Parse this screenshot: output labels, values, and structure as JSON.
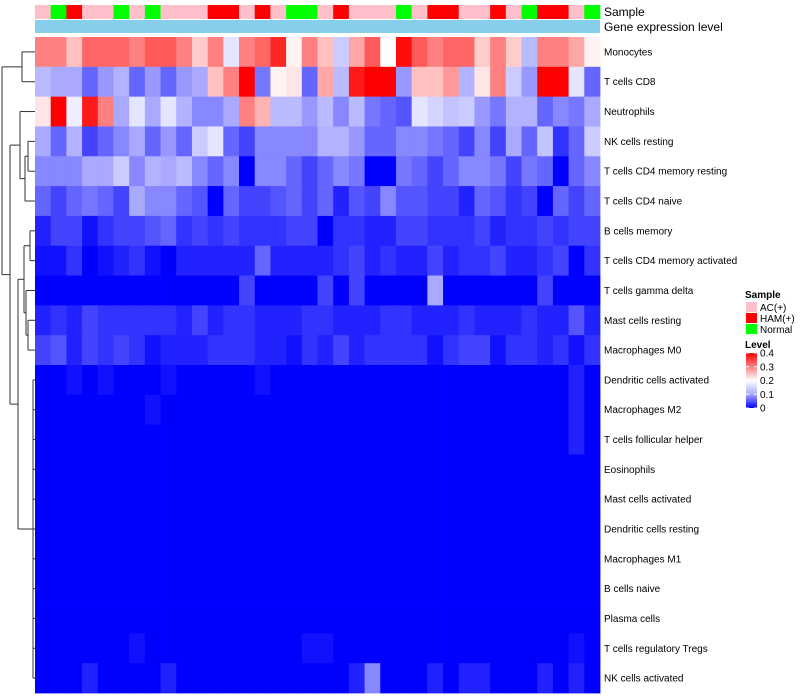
{
  "chart_data": {
    "type": "heatmap",
    "title": "",
    "annotation_rows": [
      "Sample",
      "Gene expression level"
    ],
    "gene_expression_color": "#87CEEB",
    "sample_groups": [
      "AC(+)",
      "HAM(+)",
      "Normal"
    ],
    "sample_colors": {
      "AC(+)": "#FFC0CB",
      "HAM(+)": "#FF0000",
      "Normal": "#00FF00"
    },
    "columns_sample": [
      "AC(+)",
      "Normal",
      "HAM(+)",
      "AC(+)",
      "AC(+)",
      "Normal",
      "AC(+)",
      "Normal",
      "AC(+)",
      "AC(+)",
      "AC(+)",
      "HAM(+)",
      "HAM(+)",
      "AC(+)",
      "HAM(+)",
      "AC(+)",
      "Normal",
      "Normal",
      "AC(+)",
      "HAM(+)",
      "AC(+)",
      "AC(+)",
      "AC(+)",
      "Normal",
      "AC(+)",
      "HAM(+)",
      "HAM(+)",
      "AC(+)",
      "AC(+)",
      "HAM(+)",
      "AC(+)",
      "Normal",
      "HAM(+)",
      "HAM(+)",
      "AC(+)",
      "Normal"
    ],
    "rows": [
      "Monocytes",
      "T cells CD8",
      "Neutrophils",
      "NK cells resting",
      "T cells CD4 memory resting",
      "T cells CD4 naive",
      "B cells memory",
      "T cells CD4 memory activated",
      "T cells gamma delta",
      "Mast cells resting",
      "Macrophages M0",
      "Dendritic cells activated",
      "Macrophages M2",
      "T cells follicular helper",
      "Eosinophils",
      "Mast cells activated",
      "Dendritic cells resting",
      "Macrophages M1",
      "B cells naive",
      "Plasma cells",
      "T cells regulatory  Tregs",
      "NK cells activated"
    ],
    "values": [
      [
        0.3,
        0.3,
        0.25,
        0.32,
        0.32,
        0.32,
        0.3,
        0.33,
        0.33,
        0.3,
        0.24,
        0.3,
        0.17,
        0.3,
        0.32,
        0.37,
        0.21,
        0.3,
        0.25,
        0.14,
        0.27,
        0.33,
        0.2,
        0.39,
        0.33,
        0.3,
        0.32,
        0.32,
        0.24,
        0.3,
        0.24,
        0.12,
        0.3,
        0.3,
        0.27,
        0.21
      ],
      [
        0.12,
        0.1,
        0.1,
        0.06,
        0.09,
        0.11,
        0.06,
        0.09,
        0.06,
        0.09,
        0.1,
        0.25,
        0.3,
        0.4,
        0.07,
        0.21,
        0.22,
        0.06,
        0.27,
        0.12,
        0.38,
        0.4,
        0.4,
        0.09,
        0.25,
        0.25,
        0.28,
        0.11,
        0.22,
        0.3,
        0.14,
        0.09,
        0.4,
        0.4,
        0.17,
        0.06
      ],
      [
        0.22,
        0.4,
        0.18,
        0.38,
        0.3,
        0.1,
        0.17,
        0.1,
        0.17,
        0.11,
        0.08,
        0.08,
        0.1,
        0.3,
        0.26,
        0.12,
        0.12,
        0.09,
        0.12,
        0.08,
        0.12,
        0.07,
        0.06,
        0.05,
        0.17,
        0.15,
        0.13,
        0.14,
        0.09,
        0.07,
        0.11,
        0.11,
        0.06,
        0.08,
        0.07,
        0.1
      ],
      [
        0.1,
        0.06,
        0.11,
        0.04,
        0.06,
        0.08,
        0.1,
        0.06,
        0.09,
        0.06,
        0.14,
        0.17,
        0.06,
        0.04,
        0.08,
        0.08,
        0.08,
        0.08,
        0.11,
        0.11,
        0.09,
        0.06,
        0.06,
        0.08,
        0.08,
        0.07,
        0.06,
        0.04,
        0.08,
        0.04,
        0.1,
        0.06,
        0.13,
        0.03,
        0.06,
        0.14
      ],
      [
        0.08,
        0.08,
        0.08,
        0.1,
        0.1,
        0.14,
        0.08,
        0.11,
        0.1,
        0.12,
        0.08,
        0.06,
        0.08,
        0.0,
        0.08,
        0.08,
        0.06,
        0.04,
        0.06,
        0.08,
        0.07,
        0.0,
        0.0,
        0.07,
        0.06,
        0.04,
        0.06,
        0.08,
        0.08,
        0.07,
        0.04,
        0.07,
        0.06,
        0.0,
        0.06,
        0.08
      ],
      [
        0.06,
        0.04,
        0.06,
        0.07,
        0.06,
        0.04,
        0.1,
        0.08,
        0.08,
        0.06,
        0.05,
        0.0,
        0.06,
        0.04,
        0.04,
        0.05,
        0.06,
        0.04,
        0.06,
        0.02,
        0.05,
        0.04,
        0.08,
        0.05,
        0.05,
        0.04,
        0.04,
        0.02,
        0.06,
        0.05,
        0.03,
        0.04,
        0.0,
        0.06,
        0.04,
        0.06
      ],
      [
        0.02,
        0.04,
        0.04,
        0.01,
        0.03,
        0.04,
        0.04,
        0.05,
        0.06,
        0.03,
        0.04,
        0.03,
        0.04,
        0.03,
        0.03,
        0.03,
        0.04,
        0.04,
        0.0,
        0.03,
        0.03,
        0.02,
        0.02,
        0.04,
        0.04,
        0.03,
        0.03,
        0.03,
        0.04,
        0.02,
        0.03,
        0.03,
        0.04,
        0.03,
        0.04,
        0.04
      ],
      [
        0.01,
        0.01,
        0.03,
        0.0,
        0.01,
        0.02,
        0.03,
        0.01,
        0.0,
        0.02,
        0.02,
        0.02,
        0.02,
        0.02,
        0.06,
        0.02,
        0.02,
        0.02,
        0.02,
        0.03,
        0.04,
        0.02,
        0.03,
        0.02,
        0.02,
        0.04,
        0.02,
        0.03,
        0.03,
        0.04,
        0.02,
        0.02,
        0.03,
        0.04,
        0.0,
        0.03
      ],
      [
        0.0,
        0.0,
        0.0,
        0.0,
        0.0,
        0.0,
        0.0,
        0.0,
        0.0,
        0.0,
        0.0,
        0.0,
        0.0,
        0.04,
        0.0,
        0.0,
        0.0,
        0.0,
        0.04,
        0.0,
        0.04,
        0.0,
        0.0,
        0.0,
        0.0,
        0.1,
        0.0,
        0.0,
        0.0,
        0.0,
        0.0,
        0.0,
        0.04,
        0.0,
        0.0,
        0.0
      ],
      [
        0.02,
        0.03,
        0.02,
        0.04,
        0.03,
        0.03,
        0.03,
        0.03,
        0.03,
        0.02,
        0.04,
        0.02,
        0.03,
        0.03,
        0.02,
        0.02,
        0.02,
        0.03,
        0.03,
        0.02,
        0.02,
        0.02,
        0.03,
        0.03,
        0.02,
        0.02,
        0.02,
        0.03,
        0.02,
        0.02,
        0.02,
        0.03,
        0.02,
        0.02,
        0.05,
        0.02
      ],
      [
        0.04,
        0.05,
        0.02,
        0.04,
        0.03,
        0.04,
        0.03,
        0.01,
        0.02,
        0.02,
        0.02,
        0.03,
        0.03,
        0.03,
        0.02,
        0.02,
        0.01,
        0.03,
        0.02,
        0.04,
        0.02,
        0.03,
        0.03,
        0.03,
        0.03,
        0.01,
        0.03,
        0.04,
        0.04,
        0.01,
        0.03,
        0.03,
        0.02,
        0.03,
        0.01,
        0.03
      ],
      [
        0.0,
        0.0,
        0.01,
        0.0,
        0.01,
        0.0,
        0.0,
        0.0,
        0.01,
        0.0,
        0.0,
        0.0,
        0.0,
        0.0,
        0.01,
        0.0,
        0.0,
        0.0,
        0.0,
        0.0,
        0.0,
        0.0,
        0.0,
        0.0,
        0.0,
        0.0,
        0.0,
        0.0,
        0.0,
        0.0,
        0.0,
        0.0,
        0.0,
        0.0,
        0.02,
        0.0
      ],
      [
        0.0,
        0.0,
        0.0,
        0.0,
        0.0,
        0.0,
        0.0,
        0.01,
        0.0,
        0.0,
        0.0,
        0.0,
        0.0,
        0.0,
        0.0,
        0.0,
        0.0,
        0.0,
        0.0,
        0.0,
        0.0,
        0.0,
        0.0,
        0.0,
        0.0,
        0.0,
        0.0,
        0.0,
        0.0,
        0.0,
        0.0,
        0.0,
        0.0,
        0.0,
        0.02,
        0.0
      ],
      [
        0.0,
        0.0,
        0.0,
        0.0,
        0.0,
        0.0,
        0.0,
        0.0,
        0.0,
        0.0,
        0.0,
        0.0,
        0.0,
        0.0,
        0.0,
        0.0,
        0.0,
        0.0,
        0.0,
        0.0,
        0.0,
        0.0,
        0.0,
        0.0,
        0.0,
        0.0,
        0.0,
        0.0,
        0.0,
        0.0,
        0.0,
        0.0,
        0.0,
        0.0,
        0.02,
        0.0
      ],
      [
        0.0,
        0.0,
        0.0,
        0.0,
        0.0,
        0.0,
        0.0,
        0.0,
        0.0,
        0.0,
        0.0,
        0.0,
        0.0,
        0.0,
        0.0,
        0.0,
        0.0,
        0.0,
        0.0,
        0.0,
        0.0,
        0.0,
        0.0,
        0.0,
        0.0,
        0.0,
        0.0,
        0.0,
        0.0,
        0.0,
        0.0,
        0.0,
        0.0,
        0.0,
        0.0,
        0.0
      ],
      [
        0.0,
        0.0,
        0.0,
        0.0,
        0.0,
        0.0,
        0.0,
        0.0,
        0.0,
        0.0,
        0.0,
        0.0,
        0.0,
        0.0,
        0.0,
        0.0,
        0.0,
        0.0,
        0.0,
        0.0,
        0.0,
        0.0,
        0.0,
        0.0,
        0.0,
        0.0,
        0.0,
        0.0,
        0.0,
        0.0,
        0.0,
        0.0,
        0.0,
        0.0,
        0.0,
        0.0
      ],
      [
        0.0,
        0.0,
        0.0,
        0.0,
        0.0,
        0.0,
        0.0,
        0.0,
        0.0,
        0.0,
        0.0,
        0.0,
        0.0,
        0.0,
        0.0,
        0.0,
        0.0,
        0.0,
        0.0,
        0.0,
        0.0,
        0.0,
        0.0,
        0.0,
        0.0,
        0.0,
        0.0,
        0.0,
        0.0,
        0.0,
        0.0,
        0.0,
        0.0,
        0.0,
        0.0,
        0.0
      ],
      [
        0.0,
        0.0,
        0.0,
        0.0,
        0.0,
        0.0,
        0.0,
        0.0,
        0.0,
        0.0,
        0.0,
        0.0,
        0.0,
        0.0,
        0.0,
        0.0,
        0.0,
        0.0,
        0.0,
        0.0,
        0.0,
        0.0,
        0.0,
        0.0,
        0.0,
        0.0,
        0.0,
        0.0,
        0.0,
        0.0,
        0.0,
        0.0,
        0.0,
        0.0,
        0.0,
        0.0
      ],
      [
        0.0,
        0.0,
        0.0,
        0.0,
        0.0,
        0.0,
        0.0,
        0.0,
        0.0,
        0.0,
        0.0,
        0.0,
        0.0,
        0.0,
        0.0,
        0.0,
        0.0,
        0.0,
        0.0,
        0.0,
        0.0,
        0.0,
        0.0,
        0.0,
        0.0,
        0.0,
        0.0,
        0.0,
        0.0,
        0.0,
        0.0,
        0.0,
        0.0,
        0.0,
        0.0,
        0.0
      ],
      [
        0.0,
        0.0,
        0.0,
        0.0,
        0.0,
        0.0,
        0.0,
        0.0,
        0.0,
        0.0,
        0.0,
        0.0,
        0.0,
        0.0,
        0.0,
        0.0,
        0.0,
        0.0,
        0.0,
        0.0,
        0.0,
        0.0,
        0.0,
        0.0,
        0.0,
        0.0,
        0.0,
        0.0,
        0.0,
        0.0,
        0.0,
        0.0,
        0.0,
        0.0,
        0.0,
        0.0
      ],
      [
        0.0,
        0.0,
        0.0,
        0.0,
        0.0,
        0.0,
        0.01,
        0.0,
        0.0,
        0.0,
        0.0,
        0.0,
        0.0,
        0.0,
        0.0,
        0.0,
        0.0,
        0.01,
        0.01,
        0.0,
        0.0,
        0.0,
        0.0,
        0.0,
        0.0,
        0.0,
        0.0,
        0.0,
        0.0,
        0.0,
        0.0,
        0.0,
        0.0,
        0.0,
        0.01,
        0.0
      ],
      [
        0.0,
        0.0,
        0.0,
        0.02,
        0.0,
        0.0,
        0.0,
        0.0,
        0.02,
        0.0,
        0.0,
        0.0,
        0.0,
        0.0,
        0.0,
        0.0,
        0.0,
        0.0,
        0.0,
        0.0,
        0.02,
        0.08,
        0.0,
        0.0,
        0.0,
        0.02,
        0.0,
        0.02,
        0.02,
        0.0,
        0.0,
        0.0,
        0.02,
        0.0,
        0.02,
        0.0
      ]
    ],
    "colorscale": [
      [
        0,
        "#0000FF"
      ],
      [
        0.1,
        "#A9A9FF"
      ],
      [
        0.2,
        "#FFFFFF"
      ],
      [
        0.3,
        "#FF8080"
      ],
      [
        0.4,
        "#FF0000"
      ]
    ],
    "legend": {
      "sample_title": "Sample",
      "sample_items": [
        "AC(+)",
        "HAM(+)",
        "Normal"
      ],
      "level_title": "Level",
      "level_ticks": [
        "0.4",
        "0.3",
        "0.2",
        "0.1",
        "0"
      ],
      "level_tick_values": [
        0.4,
        0.3,
        0.2,
        0.1,
        0
      ],
      "level_range": [
        0,
        0.4
      ]
    }
  }
}
